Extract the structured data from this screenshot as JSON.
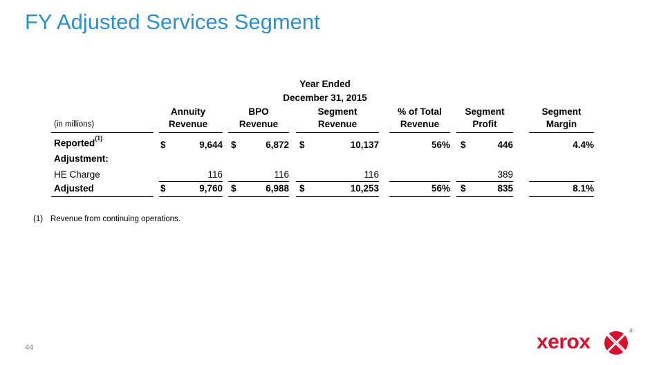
{
  "page": {
    "title": "FY Adjusted Services Segment",
    "page_number": "44"
  },
  "table": {
    "period_line1": "Year Ended",
    "period_line2": "December 31, 2015",
    "units_label": "(in millions)",
    "columns": [
      {
        "line1": "Annuity",
        "line2": "Revenue"
      },
      {
        "line1": "BPO",
        "line2": "Revenue"
      },
      {
        "line1": "Segment",
        "line2": "Revenue"
      },
      {
        "line1": "% of Total",
        "line2": "Revenue"
      },
      {
        "line1": "Segment",
        "line2": "Profit"
      },
      {
        "line1": "Segment",
        "line2": "Margin"
      }
    ],
    "reported": {
      "label": "Reported",
      "footnote_ref": "(1)",
      "currency": "$",
      "annuity": "9,644",
      "bpo": "6,872",
      "segment_revenue": "10,137",
      "pct_total": "56%",
      "profit": "446",
      "margin": "4.4%"
    },
    "adjustment_label": "Adjustment:",
    "he_charge": {
      "label": "HE Charge",
      "annuity": "116",
      "bpo": "116",
      "segment_revenue": "116",
      "profit": "389"
    },
    "adjusted": {
      "label": "Adjusted",
      "currency": "$",
      "annuity": "9,760",
      "bpo": "6,988",
      "segment_revenue": "10,253",
      "pct_total": "56%",
      "profit": "835",
      "margin": "8.1%"
    }
  },
  "footnote": {
    "marker": "(1)",
    "text": "Revenue from continuing operations."
  },
  "brand": {
    "name": "xerox",
    "registered_mark": "®",
    "title_color": "#2a8fd0",
    "brand_color": "#d5112e"
  }
}
